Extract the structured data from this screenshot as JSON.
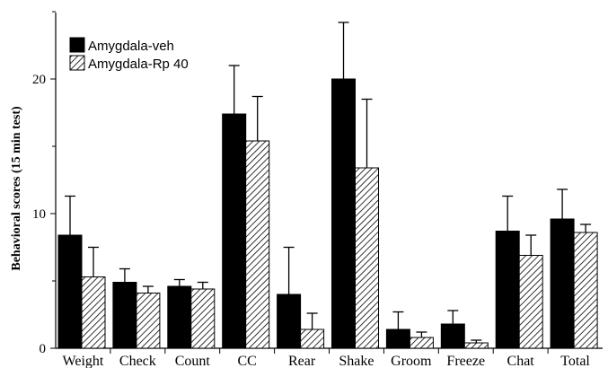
{
  "chart_data": {
    "type": "bar",
    "ylabel": "Behavioral scores (15 min test)",
    "ylim": [
      0,
      25
    ],
    "yticks": [
      "0",
      "10",
      "20"
    ],
    "categories": [
      "Weight",
      "Check",
      "Count",
      "CC",
      "Rear",
      "Shake",
      "Groom",
      "Freeze",
      "Chat",
      "Total"
    ],
    "series": [
      {
        "name": "Amygdala-veh",
        "color": "#000000",
        "pattern": "solid",
        "values": [
          8.4,
          4.9,
          4.6,
          17.4,
          4.0,
          20.0,
          1.4,
          1.8,
          8.7,
          9.6
        ],
        "errors": [
          2.9,
          1.0,
          0.5,
          3.6,
          3.5,
          4.2,
          1.3,
          1.0,
          2.6,
          2.2
        ]
      },
      {
        "name": "Amygdala-Rp 40",
        "color": "#000000",
        "pattern": "hatched",
        "values": [
          5.3,
          4.1,
          4.4,
          15.4,
          1.4,
          13.4,
          0.8,
          0.4,
          6.9,
          8.6
        ],
        "errors": [
          2.2,
          0.5,
          0.5,
          3.3,
          1.2,
          5.1,
          0.4,
          0.2,
          1.5,
          0.6
        ]
      }
    ],
    "legend_position": "top-left",
    "grid": false
  }
}
